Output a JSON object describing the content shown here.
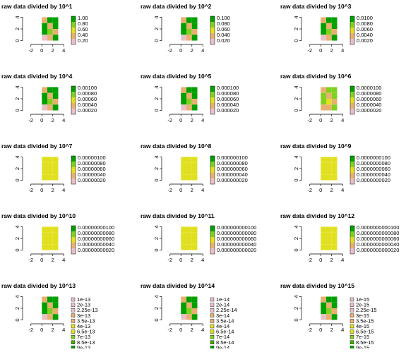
{
  "chart_data": [
    {
      "type": "heatmap",
      "title": "raw data divided by 10^1",
      "xlim": [
        -3,
        5
      ],
      "ylim": [
        0,
        4
      ],
      "x_ticks": [
        "-2",
        "0",
        "2",
        "4"
      ],
      "y_ticks": [
        "0",
        "2",
        "4"
      ],
      "legend_placement": "right",
      "legend_style": "colorbar",
      "legend_labels": [
        "1.00",
        "0.80",
        "0.60",
        "0.40",
        "0.20"
      ],
      "colors": {
        "pink": "#e8c0c8",
        "tan": "#e8b070",
        "ylw": "#e0e020",
        "lgreen": "#80d020",
        "green": "#00a000"
      },
      "x": [
        0,
        1,
        2
      ],
      "y": [
        0,
        1,
        2,
        3
      ],
      "cells": [
        [
          "tan",
          "green",
          "green"
        ],
        [
          "green",
          "tan",
          "green"
        ],
        [
          "green",
          "lgreen",
          "tan"
        ],
        [
          "pink",
          "tan",
          "green"
        ]
      ]
    },
    {
      "type": "heatmap",
      "title": "raw data divided by 10^2",
      "xlim": [
        -3,
        5
      ],
      "ylim": [
        0,
        4
      ],
      "x_ticks": [
        "-2",
        "0",
        "2",
        "4"
      ],
      "y_ticks": [
        "0",
        "2",
        "4"
      ],
      "legend_placement": "right",
      "legend_style": "colorbar",
      "legend_labels": [
        "0.100",
        "0.080",
        "0.060",
        "0.040",
        "0.020"
      ],
      "colors": {
        "pink": "#e8c0c8",
        "tan": "#e8b070",
        "ylw": "#e0e020",
        "lgreen": "#80d020",
        "green": "#00a000"
      },
      "x": [
        0,
        1,
        2
      ],
      "y": [
        0,
        1,
        2,
        3
      ],
      "cells": [
        [
          "tan",
          "green",
          "green"
        ],
        [
          "green",
          "tan",
          "green"
        ],
        [
          "green",
          "lgreen",
          "tan"
        ],
        [
          "pink",
          "tan",
          "green"
        ]
      ]
    },
    {
      "type": "heatmap",
      "title": "raw data divided by 10^3",
      "xlim": [
        -3,
        5
      ],
      "ylim": [
        0,
        4
      ],
      "x_ticks": [
        "-2",
        "0",
        "2",
        "4"
      ],
      "y_ticks": [
        "0",
        "2",
        "4"
      ],
      "legend_placement": "right",
      "legend_style": "colorbar",
      "legend_labels": [
        "0.0100",
        "0.0080",
        "0.0060",
        "0.0040",
        "0.0020"
      ],
      "colors": {
        "pink": "#e8c0c8",
        "tan": "#e8b070",
        "ylw": "#e0e020",
        "lgreen": "#80d020",
        "green": "#00a000"
      },
      "x": [
        0,
        1,
        2
      ],
      "y": [
        0,
        1,
        2,
        3
      ],
      "cells": [
        [
          "tan",
          "green",
          "green"
        ],
        [
          "green",
          "tan",
          "green"
        ],
        [
          "green",
          "lgreen",
          "tan"
        ],
        [
          "pink",
          "tan",
          "green"
        ]
      ]
    },
    {
      "type": "heatmap",
      "title": "raw data divided by 10^4",
      "xlim": [
        -3,
        5
      ],
      "ylim": [
        0,
        4
      ],
      "x_ticks": [
        "-2",
        "0",
        "2",
        "4"
      ],
      "y_ticks": [
        "0",
        "2",
        "4"
      ],
      "legend_placement": "right",
      "legend_style": "colorbar",
      "legend_labels": [
        "0.00100",
        "0.00080",
        "0.00060",
        "0.00040",
        "0.00020"
      ],
      "colors": {
        "pink": "#e8c0c8",
        "tan": "#e8b070",
        "ylw": "#e0e020",
        "lgreen": "#80d020",
        "green": "#00a000"
      },
      "x": [
        0,
        1,
        2
      ],
      "y": [
        0,
        1,
        2,
        3
      ],
      "cells": [
        [
          "tan",
          "green",
          "green"
        ],
        [
          "green",
          "tan",
          "green"
        ],
        [
          "green",
          "lgreen",
          "tan"
        ],
        [
          "pink",
          "tan",
          "green"
        ]
      ]
    },
    {
      "type": "heatmap",
      "title": "raw data divided by 10^5",
      "xlim": [
        -3,
        5
      ],
      "ylim": [
        0,
        4
      ],
      "x_ticks": [
        "-2",
        "0",
        "2",
        "4"
      ],
      "y_ticks": [
        "0",
        "2",
        "4"
      ],
      "legend_placement": "right",
      "legend_style": "colorbar",
      "legend_labels": [
        "0.000100",
        "0.000080",
        "0.000060",
        "0.000040",
        "0.000020"
      ],
      "colors": {
        "pink": "#e8c0c8",
        "tan": "#e8b070",
        "ylw": "#e0e020",
        "lgreen": "#80d020",
        "green": "#00a000"
      },
      "x": [
        0,
        1,
        2
      ],
      "y": [
        0,
        1,
        2,
        3
      ],
      "cells": [
        [
          "tan",
          "green",
          "green"
        ],
        [
          "green",
          "tan",
          "green"
        ],
        [
          "green",
          "lgreen",
          "tan"
        ],
        [
          "pink",
          "tan",
          "green"
        ]
      ]
    },
    {
      "type": "heatmap",
      "title": "raw data divided by 10^6",
      "xlim": [
        -3,
        5
      ],
      "ylim": [
        0,
        4
      ],
      "x_ticks": [
        "-2",
        "0",
        "2",
        "4"
      ],
      "y_ticks": [
        "0",
        "2",
        "4"
      ],
      "legend_placement": "right",
      "legend_style": "colorbar",
      "legend_labels": [
        "0.0000100",
        "0.0000080",
        "0.0000060",
        "0.0000040",
        "0.0000020"
      ],
      "colors": {
        "pink": "#e8c0c8",
        "tan": "#e8b070",
        "ylw": "#e0e020",
        "lgreen": "#80d020",
        "green": "#00a000"
      },
      "x": [
        0,
        1,
        2
      ],
      "y": [
        0,
        1,
        2,
        3
      ],
      "cells": [
        [
          "tan",
          "lgreen",
          "lgreen"
        ],
        [
          "lgreen",
          "tan",
          "lgreen"
        ],
        [
          "lgreen",
          "ylw",
          "tan"
        ],
        [
          "tan",
          "tan",
          "lgreen"
        ]
      ]
    },
    {
      "type": "heatmap",
      "title": "raw data divided by 10^7",
      "xlim": [
        -3,
        5
      ],
      "ylim": [
        0,
        4
      ],
      "x_ticks": [
        "-2",
        "0",
        "2",
        "4"
      ],
      "y_ticks": [
        "0",
        "2",
        "4"
      ],
      "legend_placement": "right",
      "legend_style": "colorbar",
      "legend_labels": [
        "0.00000100",
        "0.00000080",
        "0.00000060",
        "0.00000040",
        "0.00000020"
      ],
      "colors": {
        "pink": "#e8c0c8",
        "tan": "#e8b070",
        "ylw": "#e0e020",
        "lgreen": "#80d020",
        "green": "#00a000"
      },
      "x": [
        0,
        1,
        2
      ],
      "y": [
        0,
        1,
        2,
        3
      ],
      "cells": [
        [
          "ylw",
          "ylw",
          "ylw"
        ],
        [
          "ylw",
          "ylw",
          "ylw"
        ],
        [
          "ylw",
          "ylw",
          "ylw"
        ],
        [
          "ylw",
          "ylw",
          "ylw"
        ]
      ]
    },
    {
      "type": "heatmap",
      "title": "raw data divided by 10^8",
      "xlim": [
        -3,
        5
      ],
      "ylim": [
        0,
        4
      ],
      "x_ticks": [
        "-2",
        "0",
        "2",
        "4"
      ],
      "y_ticks": [
        "0",
        "2",
        "4"
      ],
      "legend_placement": "right",
      "legend_style": "colorbar",
      "legend_labels": [
        "0.000000100",
        "0.000000080",
        "0.000000060",
        "0.000000040",
        "0.000000020"
      ],
      "colors": {
        "pink": "#e8c0c8",
        "tan": "#e8b070",
        "ylw": "#e0e020",
        "lgreen": "#80d020",
        "green": "#00a000"
      },
      "x": [
        0,
        1,
        2
      ],
      "y": [
        0,
        1,
        2,
        3
      ],
      "cells": [
        [
          "ylw",
          "ylw",
          "ylw"
        ],
        [
          "ylw",
          "ylw",
          "ylw"
        ],
        [
          "ylw",
          "ylw",
          "ylw"
        ],
        [
          "ylw",
          "ylw",
          "ylw"
        ]
      ]
    },
    {
      "type": "heatmap",
      "title": "raw data divided by 10^9",
      "xlim": [
        -3,
        5
      ],
      "ylim": [
        0,
        4
      ],
      "x_ticks": [
        "-2",
        "0",
        "2",
        "4"
      ],
      "y_ticks": [
        "0",
        "2",
        "4"
      ],
      "legend_placement": "right",
      "legend_style": "colorbar",
      "legend_labels": [
        "0.0000000100",
        "0.0000000080",
        "0.0000000060",
        "0.0000000040",
        "0.0000000020"
      ],
      "colors": {
        "pink": "#e8c0c8",
        "tan": "#e8b070",
        "ylw": "#e0e020",
        "lgreen": "#80d020",
        "green": "#00a000"
      },
      "x": [
        0,
        1,
        2
      ],
      "y": [
        0,
        1,
        2,
        3
      ],
      "cells": [
        [
          "ylw",
          "ylw",
          "ylw"
        ],
        [
          "ylw",
          "ylw",
          "ylw"
        ],
        [
          "ylw",
          "ylw",
          "ylw"
        ],
        [
          "ylw",
          "ylw",
          "ylw"
        ]
      ]
    },
    {
      "type": "heatmap",
      "title": "raw data divided by 10^10",
      "xlim": [
        -3,
        5
      ],
      "ylim": [
        0,
        4
      ],
      "x_ticks": [
        "-2",
        "0",
        "2",
        "4"
      ],
      "y_ticks": [
        "0",
        "2",
        "4"
      ],
      "legend_placement": "right",
      "legend_style": "colorbar",
      "legend_labels": [
        "0.00000000100",
        "0.00000000080",
        "0.00000000060",
        "0.00000000040",
        "0.00000000020"
      ],
      "colors": {
        "pink": "#e8c0c8",
        "tan": "#e8b070",
        "ylw": "#e0e020",
        "lgreen": "#80d020",
        "green": "#00a000"
      },
      "x": [
        0,
        1,
        2
      ],
      "y": [
        0,
        1,
        2,
        3
      ],
      "cells": [
        [
          "ylw",
          "ylw",
          "ylw"
        ],
        [
          "ylw",
          "ylw",
          "ylw"
        ],
        [
          "ylw",
          "ylw",
          "ylw"
        ],
        [
          "ylw",
          "ylw",
          "ylw"
        ]
      ]
    },
    {
      "type": "heatmap",
      "title": "raw data divided by 10^11",
      "xlim": [
        -3,
        5
      ],
      "ylim": [
        0,
        4
      ],
      "x_ticks": [
        "-2",
        "0",
        "2",
        "4"
      ],
      "y_ticks": [
        "0",
        "2",
        "4"
      ],
      "legend_placement": "right",
      "legend_style": "colorbar",
      "legend_labels": [
        "0.000000000100",
        "0.000000000080",
        "0.000000000060",
        "0.000000000040",
        "0.000000000020"
      ],
      "colors": {
        "pink": "#e8c0c8",
        "tan": "#e8b070",
        "ylw": "#e0e020",
        "lgreen": "#80d020",
        "green": "#00a000"
      },
      "x": [
        0,
        1,
        2
      ],
      "y": [
        0,
        1,
        2,
        3
      ],
      "cells": [
        [
          "ylw",
          "ylw",
          "ylw"
        ],
        [
          "ylw",
          "ylw",
          "ylw"
        ],
        [
          "ylw",
          "ylw",
          "ylw"
        ],
        [
          "ylw",
          "ylw",
          "ylw"
        ]
      ]
    },
    {
      "type": "heatmap",
      "title": "raw data divided by 10^12",
      "xlim": [
        -3,
        5
      ],
      "ylim": [
        0,
        4
      ],
      "x_ticks": [
        "-2",
        "0",
        "2",
        "4"
      ],
      "y_ticks": [
        "0",
        "2",
        "4"
      ],
      "legend_placement": "right",
      "legend_style": "colorbar",
      "legend_labels": [
        "0.0000000000100",
        "0.0000000000080",
        "0.0000000000060",
        "0.0000000000040",
        "0.0000000000020"
      ],
      "colors": {
        "pink": "#e8c0c8",
        "tan": "#e8b070",
        "ylw": "#e0e020",
        "lgreen": "#80d020",
        "green": "#00a000"
      },
      "x": [
        0,
        1,
        2
      ],
      "y": [
        0,
        1,
        2,
        3
      ],
      "cells": [
        [
          "ylw",
          "ylw",
          "ylw"
        ],
        [
          "ylw",
          "ylw",
          "ylw"
        ],
        [
          "ylw",
          "ylw",
          "ylw"
        ],
        [
          "ylw",
          "ylw",
          "ylw"
        ]
      ]
    },
    {
      "type": "heatmap",
      "title": "raw data divided by 10^13",
      "xlim": [
        -3,
        5
      ],
      "ylim": [
        0,
        4
      ],
      "x_ticks": [
        "-2",
        "0",
        "2",
        "4"
      ],
      "y_ticks": [
        "0",
        "2",
        "4"
      ],
      "legend_placement": "right",
      "legend_style": "boxes",
      "legend_labels": [
        "1e-13",
        "2e-13",
        "2.25e-13",
        "3e-13",
        "3.5e-13",
        "4e-13",
        "6.5e-13",
        "7e-13",
        "8.5e-13",
        "9e-13"
      ],
      "legend_colors": [
        "#e8c0c8",
        "#e8c0c8",
        "#e8c0c8",
        "#e8b070",
        "#e8b070",
        "#e0e020",
        "#e0e020",
        "#80d020",
        "#40b000",
        "#00a000"
      ],
      "colors": {
        "pink": "#e8c0c8",
        "tan": "#e8b070",
        "ylw": "#e0e020",
        "lgreen": "#80d020",
        "green": "#00a000"
      },
      "x": [
        0,
        1,
        2
      ],
      "y": [
        0,
        1,
        2,
        3
      ],
      "cells": [
        [
          "tan",
          "green",
          "green"
        ],
        [
          "green",
          "tan",
          "green"
        ],
        [
          "green",
          "lgreen",
          "tan"
        ],
        [
          "pink",
          "tan",
          "green"
        ]
      ]
    },
    {
      "type": "heatmap",
      "title": "raw data divided by 10^14",
      "xlim": [
        -3,
        5
      ],
      "ylim": [
        0,
        4
      ],
      "x_ticks": [
        "-2",
        "0",
        "2",
        "4"
      ],
      "y_ticks": [
        "0",
        "2",
        "4"
      ],
      "legend_placement": "right",
      "legend_style": "boxes",
      "legend_labels": [
        "1e-14",
        "2e-14",
        "2.25e-14",
        "3e-14",
        "3.5e-14",
        "4e-14",
        "6.5e-14",
        "7e-14",
        "8.5e-14",
        "9e-14"
      ],
      "legend_colors": [
        "#e8c0c8",
        "#e8c0c8",
        "#e8c0c8",
        "#e8b070",
        "#e8b070",
        "#e0e020",
        "#e0e020",
        "#80d020",
        "#40b000",
        "#00a000"
      ],
      "colors": {
        "pink": "#e8c0c8",
        "tan": "#e8b070",
        "ylw": "#e0e020",
        "lgreen": "#80d020",
        "green": "#00a000"
      },
      "x": [
        0,
        1,
        2
      ],
      "y": [
        0,
        1,
        2,
        3
      ],
      "cells": [
        [
          "tan",
          "green",
          "green"
        ],
        [
          "green",
          "tan",
          "green"
        ],
        [
          "green",
          "lgreen",
          "tan"
        ],
        [
          "pink",
          "tan",
          "green"
        ]
      ]
    },
    {
      "type": "heatmap",
      "title": "raw data divided by 10^15",
      "xlim": [
        -3,
        5
      ],
      "ylim": [
        0,
        4
      ],
      "x_ticks": [
        "-2",
        "0",
        "2",
        "4"
      ],
      "y_ticks": [
        "0",
        "2",
        "4"
      ],
      "legend_placement": "right",
      "legend_style": "boxes",
      "legend_labels": [
        "1e-15",
        "2e-15",
        "2.25e-15",
        "3e-15",
        "3.5e-15",
        "4e-15",
        "6.5e-15",
        "7e-15",
        "8.5e-15",
        "9e-15"
      ],
      "legend_colors": [
        "#e8c0c8",
        "#e8c0c8",
        "#e8c0c8",
        "#e8b070",
        "#e8b070",
        "#e0e020",
        "#e0e020",
        "#80d020",
        "#40b000",
        "#00a000"
      ],
      "colors": {
        "pink": "#e8c0c8",
        "tan": "#e8b070",
        "ylw": "#e0e020",
        "lgreen": "#80d020",
        "green": "#00a000"
      },
      "x": [
        0,
        1,
        2
      ],
      "y": [
        0,
        1,
        2,
        3
      ],
      "cells": [
        [
          "tan",
          "green",
          "green"
        ],
        [
          "green",
          "tan",
          "green"
        ],
        [
          "green",
          "lgreen",
          "tan"
        ],
        [
          "pink",
          "tan",
          "green"
        ]
      ]
    }
  ],
  "colorbar_colors": [
    "#e8c0c8",
    "#e8b070",
    "#e0e020",
    "#80d020",
    "#00a000"
  ]
}
